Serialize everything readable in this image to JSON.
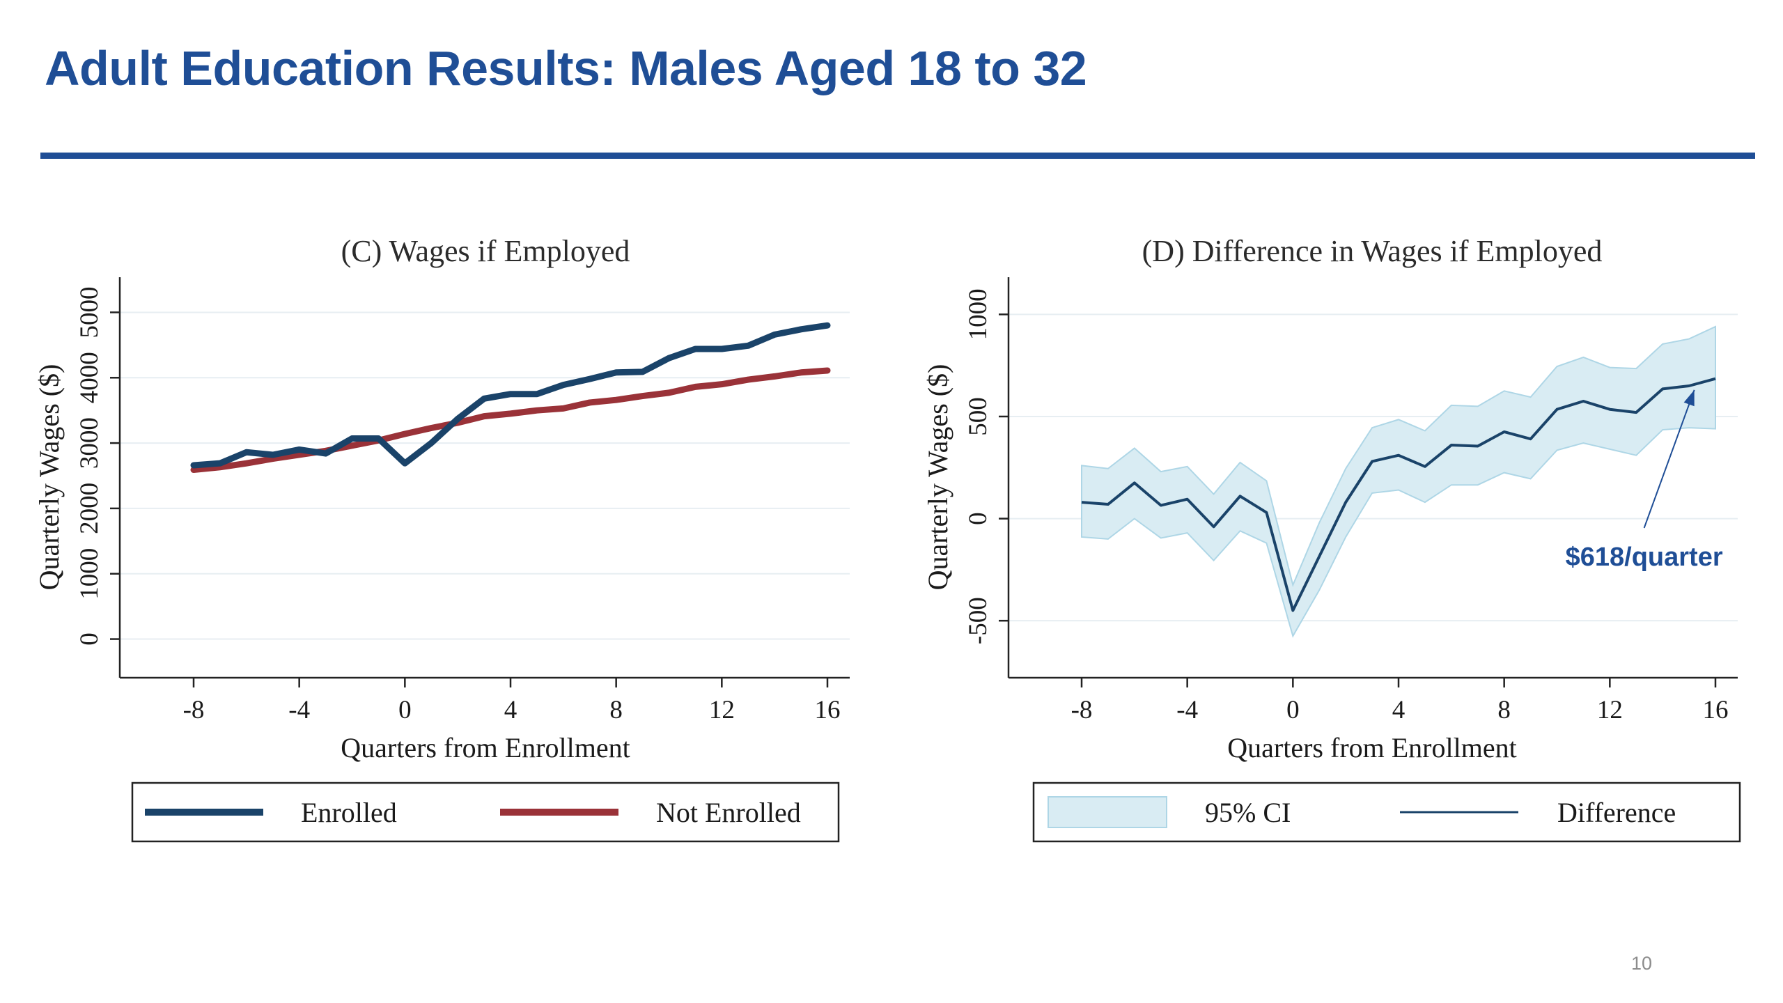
{
  "slide": {
    "title": "Adult Education Results: Males Aged 18 to 32",
    "page_number": "10"
  },
  "colors": {
    "title": "#1f4e96",
    "enrolled": "#1a4369",
    "not_enrolled": "#9a3238",
    "difference": "#1a4369",
    "ci_fill": "#d9ecf3",
    "ci_edge": "#aed6e6",
    "annotation": "#1f4e96"
  },
  "chart_data": [
    {
      "type": "line",
      "title": "(C) Wages if Employed",
      "xlabel": "Quarters from Enrollment",
      "ylabel": "Quarterly Wages ($)",
      "xlim": [
        -8,
        16
      ],
      "ylim": [
        -250,
        5250
      ],
      "xticks": [
        -8,
        -4,
        0,
        4,
        8,
        12,
        16
      ],
      "yticks": [
        0,
        1000,
        2000,
        3000,
        4000,
        5000
      ],
      "grid": true,
      "legend_position": "bottom",
      "x": [
        -8,
        -7,
        -6,
        -5,
        -4,
        -3,
        -2,
        -1,
        0,
        1,
        2,
        3,
        4,
        5,
        6,
        7,
        8,
        9,
        10,
        11,
        12,
        13,
        14,
        15,
        16
      ],
      "series": [
        {
          "name": "Enrolled",
          "values": [
            2660,
            2690,
            2860,
            2820,
            2900,
            2840,
            3070,
            3070,
            2690,
            3000,
            3370,
            3680,
            3750,
            3750,
            3890,
            3980,
            4080,
            4090,
            4300,
            4440,
            4440,
            4490,
            4660,
            4740,
            4800
          ]
        },
        {
          "name": "Not Enrolled",
          "values": [
            2590,
            2630,
            2690,
            2760,
            2820,
            2880,
            2960,
            3040,
            3140,
            3230,
            3310,
            3410,
            3450,
            3500,
            3530,
            3620,
            3660,
            3720,
            3770,
            3860,
            3900,
            3970,
            4020,
            4080,
            4110
          ]
        }
      ]
    },
    {
      "type": "line",
      "title": "(D) Difference in Wages if Employed",
      "xlabel": "Quarters from Enrollment",
      "ylabel": "Quarterly Wages ($)",
      "xlim": [
        -8,
        16
      ],
      "ylim": [
        -670,
        1090
      ],
      "xticks": [
        -8,
        -4,
        0,
        4,
        8,
        12,
        16
      ],
      "yticks": [
        -500,
        0,
        500,
        1000
      ],
      "grid": true,
      "legend_position": "bottom",
      "x": [
        -8,
        -7,
        -6,
        -5,
        -4,
        -3,
        -2,
        -1,
        0,
        1,
        2,
        3,
        4,
        5,
        6,
        7,
        8,
        9,
        10,
        11,
        12,
        13,
        14,
        15,
        16
      ],
      "series": [
        {
          "name": "Difference",
          "values": [
            80,
            70,
            175,
            65,
            95,
            -40,
            110,
            30,
            -450,
            -185,
            80,
            280,
            310,
            255,
            360,
            355,
            425,
            390,
            535,
            575,
            535,
            520,
            635,
            650,
            685
          ]
        },
        {
          "name": "95% CI",
          "lower": [
            -90,
            -100,
            0,
            -95,
            -70,
            -205,
            -60,
            -120,
            -575,
            -350,
            -90,
            125,
            140,
            80,
            165,
            165,
            225,
            195,
            335,
            370,
            340,
            310,
            435,
            445,
            440
          ],
          "upper": [
            260,
            245,
            345,
            230,
            255,
            120,
            275,
            185,
            -325,
            -20,
            245,
            445,
            485,
            430,
            555,
            550,
            625,
            595,
            745,
            790,
            740,
            735,
            855,
            880,
            940
          ]
        }
      ],
      "annotations": [
        {
          "text": "$618/quarter",
          "x": 13.3,
          "y": -230,
          "arrow_to": [
            15.2,
            630
          ]
        }
      ]
    }
  ]
}
